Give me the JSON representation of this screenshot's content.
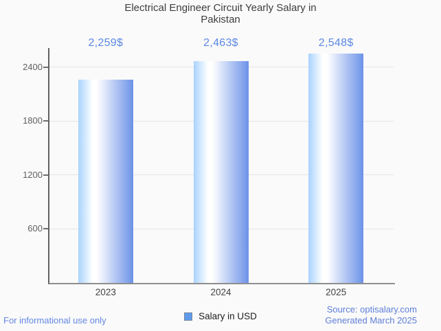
{
  "chart_data": {
    "type": "bar",
    "title": "Electrical Engineer Circuit Yearly Salary in Pakistan",
    "categories": [
      "2023",
      "2024",
      "2025"
    ],
    "series": [
      {
        "name": "Salary in USD",
        "values": [
          2259,
          2463,
          2548
        ]
      }
    ],
    "value_labels": [
      "2,259$",
      "2,463$",
      "2,548$"
    ],
    "yticks": [
      600,
      1200,
      1800,
      2400
    ],
    "ytick_labels": [
      "600",
      "1200",
      "1800",
      "2400"
    ],
    "ylim": [
      0,
      2610
    ],
    "xlabel": "",
    "ylabel": "",
    "grid": true,
    "legend_position": "bottom"
  },
  "legend": {
    "label": "Salary in USD"
  },
  "footer": {
    "disclaimer": "For informational use only",
    "source": "Source: optisalary.com",
    "generated": "Generated March 2025"
  },
  "colors": {
    "background": "#fafafa",
    "title_text": "#3d3d3d",
    "value_label_text": "#5b87e4",
    "axis_line": "#616161",
    "baseline": "#8e8e8e",
    "gridline": "#e4e4e4",
    "tick_label_text": "#5f5f5f",
    "x_label_text": "#424242",
    "bar_gradient_left": "#a9d3fd",
    "bar_gradient_highlight": "#ffffff",
    "bar_gradient_right": "#6c92e8",
    "legend_marker_fill": "#5f9bea",
    "legend_marker_border": "#74879f",
    "source_text": "#5d7ed8",
    "disclaimer_text": "#6286e2"
  }
}
